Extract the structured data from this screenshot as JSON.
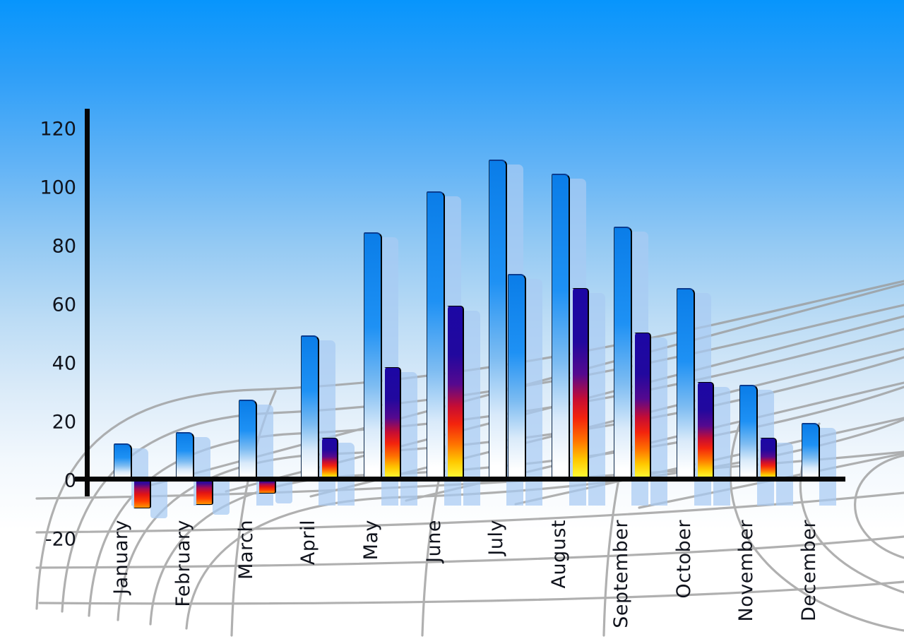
{
  "y_axis": {
    "ticks": [
      120,
      100,
      80,
      60,
      40,
      20,
      0,
      -20
    ],
    "min": -20,
    "max": 120
  },
  "chart_data": {
    "type": "bar",
    "title": "",
    "xlabel": "",
    "ylabel": "",
    "ylim": [
      -20,
      120
    ],
    "grid": "gray perspective curved floor grid",
    "legend": "none",
    "background": "blue sky gradient fading to white",
    "categories": [
      "January",
      "February",
      "March",
      "April",
      "May",
      "June",
      "July",
      "August",
      "September",
      "October",
      "November",
      "December"
    ],
    "series": [
      {
        "name": "series-blue",
        "values": [
          12,
          16,
          27,
          49,
          84,
          98,
          109,
          104,
          86,
          65,
          32,
          19
        ],
        "bar_styles": [
          "blue",
          "blue",
          "blue",
          "blue",
          "blue",
          "blue",
          "blue",
          "blue",
          "blue",
          "blue",
          "blue",
          "blue"
        ]
      },
      {
        "name": "series-gradient",
        "values": [
          -10,
          -9,
          -5,
          14,
          38,
          59,
          70,
          65,
          50,
          33,
          14,
          null
        ],
        "bar_styles": [
          "gradient",
          "gradient",
          "gradient",
          "gradient",
          "gradient",
          "gradient",
          "blue",
          "gradient",
          "gradient",
          "gradient",
          "gradient",
          "none"
        ]
      }
    ]
  },
  "colors": {
    "sky_top": "#0795fc",
    "blue_bar_top": "#0a7de8",
    "gradient_bar_stops": [
      "#1c07a4",
      "#c60d33",
      "#ff7300",
      "#ffff38"
    ],
    "negative_bar_stops": [
      "#1c07a4",
      "#e11314",
      "#ff9600"
    ],
    "ghost_bar": "rgba(167,202,242,0.72)",
    "grid_line": "#9b9b9b",
    "axis": "#060606",
    "label_text": "#10131c"
  }
}
